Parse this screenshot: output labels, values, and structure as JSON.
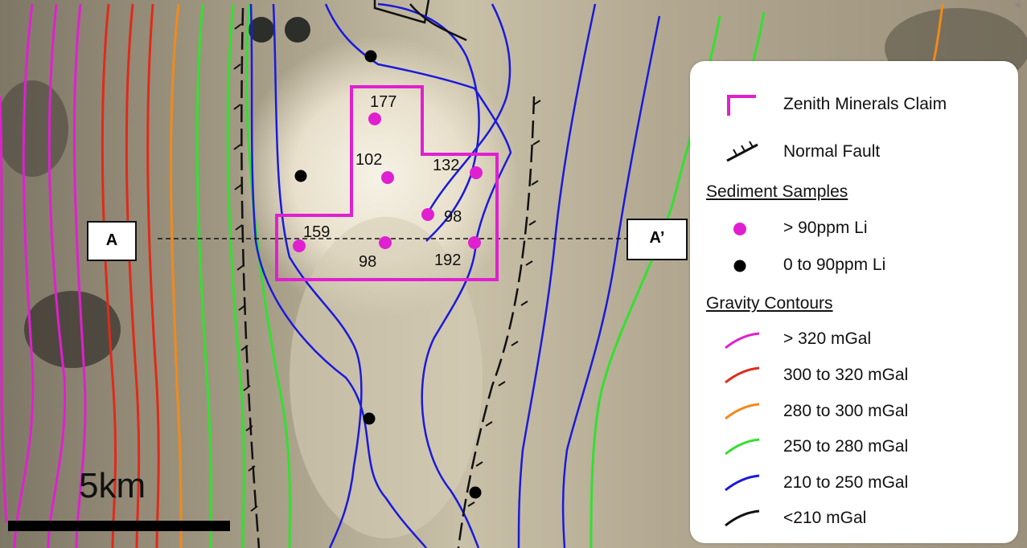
{
  "section_labels": {
    "start": "A",
    "end": "A’"
  },
  "scale": {
    "label": "5km"
  },
  "claim_color": "#e020d0",
  "samples": [
    {
      "value": "177",
      "group": "high"
    },
    {
      "value": "102",
      "group": "high"
    },
    {
      "value": "132",
      "group": "high"
    },
    {
      "value": "98",
      "group": "high"
    },
    {
      "value": "159",
      "group": "high"
    },
    {
      "value": "98",
      "group": "high"
    },
    {
      "value": "192",
      "group": "high"
    }
  ],
  "legend": {
    "claim": "Zenith Minerals Claim",
    "fault": "Normal Fault",
    "samples_heading": "Sediment Samples",
    "samples": [
      {
        "label": "> 90ppm Li",
        "color": "#e020d0"
      },
      {
        "label": "0 to 90ppm Li",
        "color": "#000000"
      }
    ],
    "gravity_heading": "Gravity Contours",
    "contours": [
      {
        "label": "> 320 mGal",
        "color": "#e020d0"
      },
      {
        "label": "300 to 320 mGal",
        "color": "#e02a1a"
      },
      {
        "label": "280 to 300 mGal",
        "color": "#f08a1c"
      },
      {
        "label": "250 to 280 mGal",
        "color": "#33e030"
      },
      {
        "label": "210 to 250 mGal",
        "color": "#1a1adc"
      },
      {
        "label": "<210 mGal",
        "color": "#111111"
      }
    ]
  }
}
